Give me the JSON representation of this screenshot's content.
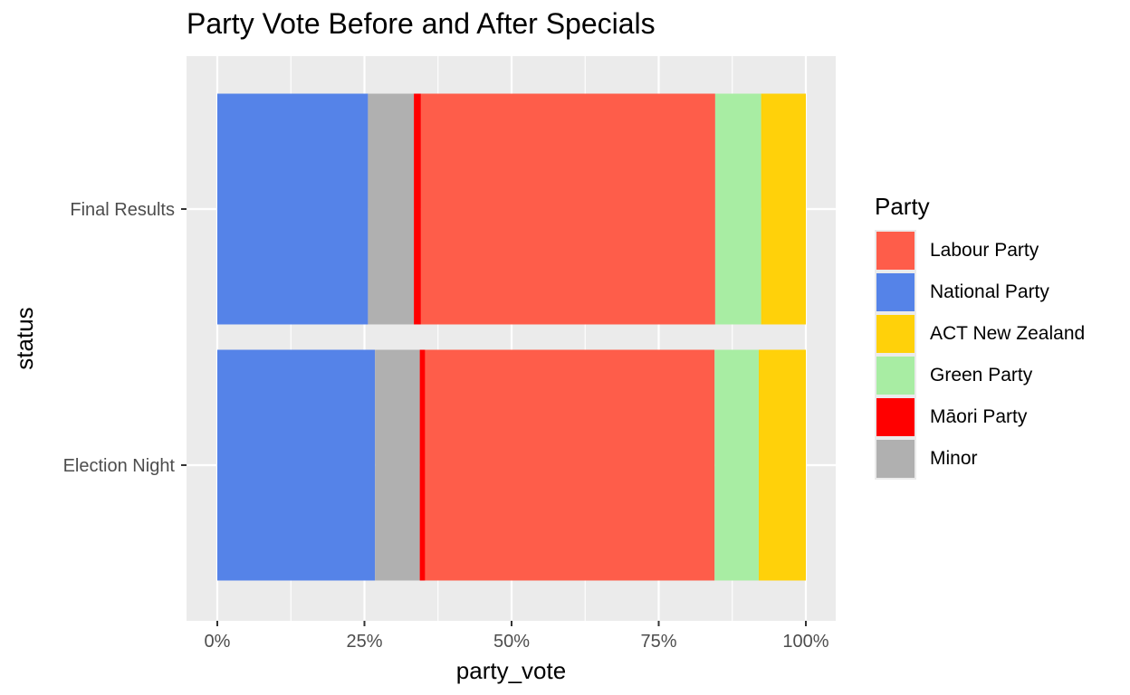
{
  "chart_data": {
    "type": "bar",
    "orientation": "horizontal",
    "stacked": true,
    "title": "Party Vote Before and After Specials",
    "xlabel": "party_vote",
    "ylabel": "status",
    "xlim": [
      0,
      1
    ],
    "x_ticks": [
      "0%",
      "25%",
      "50%",
      "75%",
      "100%"
    ],
    "x_tick_values": [
      0,
      0.25,
      0.5,
      0.75,
      1.0
    ],
    "categories": [
      "Final Results",
      "Election Night"
    ],
    "stack_order": [
      "National Party",
      "Minor",
      "Māori Party",
      "Labour Party",
      "Green Party",
      "ACT New Zealand"
    ],
    "series": [
      {
        "name": "National Party",
        "color": "#5583e8",
        "values": [
          0.256,
          0.268
        ]
      },
      {
        "name": "Minor",
        "color": "#b0b0b0",
        "values": [
          0.078,
          0.076
        ]
      },
      {
        "name": "Māori Party",
        "color": "#ff0000",
        "values": [
          0.012,
          0.009
        ]
      },
      {
        "name": "Labour Party",
        "color": "#fe5d4a",
        "values": [
          0.5,
          0.492
        ]
      },
      {
        "name": "Green Party",
        "color": "#a8eda3",
        "values": [
          0.078,
          0.075
        ]
      },
      {
        "name": "ACT New Zealand",
        "color": "#ffd10a",
        "values": [
          0.076,
          0.08
        ]
      }
    ],
    "grid": true,
    "background": "#ebebeb",
    "legend": {
      "title": "Party",
      "position": "right",
      "entries": [
        {
          "label": "Labour Party",
          "color": "#fe5d4a"
        },
        {
          "label": "National Party",
          "color": "#5583e8"
        },
        {
          "label": "ACT New Zealand",
          "color": "#ffd10a"
        },
        {
          "label": "Green Party",
          "color": "#a8eda3"
        },
        {
          "label": "Māori Party",
          "color": "#ff0000"
        },
        {
          "label": "Minor",
          "color": "#b0b0b0"
        }
      ]
    }
  }
}
